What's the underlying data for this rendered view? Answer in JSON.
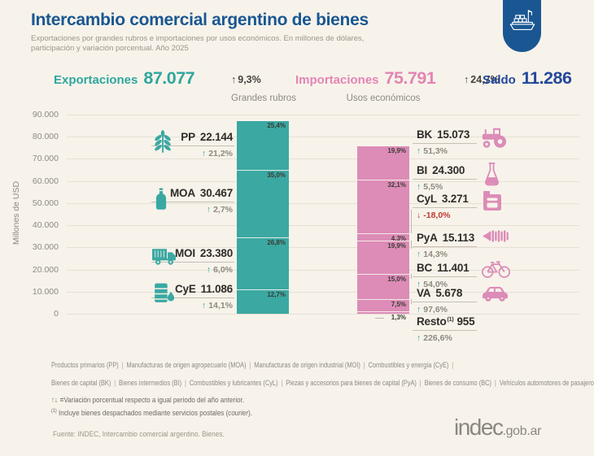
{
  "colors": {
    "background": "#F7F3EB",
    "title_blue": "#1A5792",
    "export_teal": "#3BA8A2",
    "import_pink": "#DC8CB7",
    "saldo_navy": "#25489B",
    "negative_red": "#C03A2F"
  },
  "header": {
    "title": "Intercambio comercial argentino de bienes",
    "subtitle_line1": "Exportaciones por grandes rubros e importaciones por usos económicos. En millones de dólares,",
    "subtitle_line2": "participación y variación porcentual. Año 2025"
  },
  "summary": {
    "exports": {
      "label": "Exportaciones",
      "value": "87.077",
      "arrow": "↑",
      "variation": "9,3%"
    },
    "imports": {
      "label": "Importaciones",
      "value": "75.791",
      "arrow": "↑",
      "variation": "24,7%"
    },
    "balance": {
      "label": "Saldo",
      "value": "11.286"
    }
  },
  "chart_data": {
    "type": "bar",
    "subtype": "stacked-columns",
    "title": "Intercambio comercial argentino de bienes",
    "ylabel": "Millones de USD",
    "ylim": [
      0,
      90000
    ],
    "ytick_labels": [
      "90.000",
      "80.000",
      "70.000",
      "60.000",
      "50.000",
      "40.000",
      "30.000",
      "20.000",
      "10.000",
      "0"
    ],
    "grid": true,
    "columns": [
      {
        "header": "Grandes rubros",
        "side": "left",
        "total": 87077,
        "color": "#3BA8A2",
        "segments": [
          {
            "code": "PP",
            "value": 22144,
            "value_label": "22.144",
            "share": "25,4%",
            "variation": "21,2%",
            "direction": "up",
            "icon": "wheat-icon",
            "label_line_y": 182
          },
          {
            "code": "MOA",
            "value": 30467,
            "value_label": "30.467",
            "share": "35,0%",
            "variation": "2,7%",
            "direction": "up",
            "icon": "bottle-icon",
            "label_line_y": 251
          },
          {
            "code": "MOI",
            "value": 23380,
            "value_label": "23.380",
            "share": "26,8%",
            "variation": "6,0%",
            "direction": "up",
            "icon": "truck-icon",
            "label_line_y": 325
          },
          {
            "code": "CyE",
            "value": 11086,
            "value_label": "11.086",
            "share": "12,7%",
            "variation": "14,1%",
            "direction": "up",
            "icon": "fuel-barrel-icon",
            "label_line_y": 369
          }
        ]
      },
      {
        "header": "Usos económicos",
        "side": "right",
        "total": 75791,
        "color": "#DC8CB7",
        "segments": [
          {
            "code": "BK",
            "value": 15073,
            "value_label": "15.073",
            "share": "19,9%",
            "variation": "51,3%",
            "direction": "up",
            "icon": "tractor-icon",
            "label_line_y": 179
          },
          {
            "code": "BI",
            "value": 24300,
            "value_label": "24.300",
            "share": "32,1%",
            "variation": "5,5%",
            "direction": "up",
            "icon": "flask-icon",
            "label_line_y": 223
          },
          {
            "code": "CyL",
            "value": 3271,
            "value_label": "3.271",
            "share": "4,3%",
            "variation": "-18,0%",
            "direction": "down",
            "icon": "jerrycan-icon",
            "label_line_y": 258,
            "connector": true
          },
          {
            "code": "PyA",
            "value": 15113,
            "value_label": "15.113",
            "share": "19,9%",
            "variation": "14,3%",
            "direction": "up",
            "icon": "screw-icon",
            "label_line_y": 306,
            "connector": true
          },
          {
            "code": "BC",
            "value": 11401,
            "value_label": "11.401",
            "share": "15,0%",
            "variation": "54,0%",
            "direction": "up",
            "icon": "bicycle-icon",
            "label_line_y": 343,
            "connector": true
          },
          {
            "code": "VA",
            "value": 5678,
            "value_label": "5.678",
            "share": "7,5%",
            "variation": "97,6%",
            "direction": "up",
            "icon": "car-icon",
            "label_line_y": 374,
            "connector": true
          },
          {
            "code": "Resto",
            "sup": "(1)",
            "value": 955,
            "value_label": "955",
            "share": "1,3%",
            "share_outside": true,
            "variation": "226,6%",
            "direction": "up",
            "icon": null,
            "label_line_y": 409
          }
        ]
      }
    ]
  },
  "footer": {
    "legend_line1": [
      "Productos primarios (PP)",
      "Manufacturas de origen agropecuario (MOA)",
      "Manufacturas de origen industrial (MOI)",
      "Combustibles y energía (CyE)"
    ],
    "legend_line1_trailing": "|",
    "legend_line2": [
      "Bienes de capital (BK)",
      "Bienes intermedios (BI)",
      "Combustibles y lubricantes (CyL)",
      "Piezas y accesorios para bienes de capital (PyA)",
      "Bienes de consumo (BC)",
      "Vehículos automotores de pasajeros (VA)"
    ],
    "note_variation": {
      "up": "↑",
      "down": "↓",
      "eq": "=",
      "text": "Variación porcentual respecto a igual periodo del año anterior."
    },
    "note_courier": {
      "marker": "(1)",
      "before": "Incluye bienes despachados mediante servicios postales (",
      "italic": "courier",
      "after": ")."
    },
    "source": "Fuente: INDEC, Intercambio comercial argentino. Bienes.",
    "logo": {
      "name": "indec",
      "suffix": ".gob.ar"
    }
  }
}
